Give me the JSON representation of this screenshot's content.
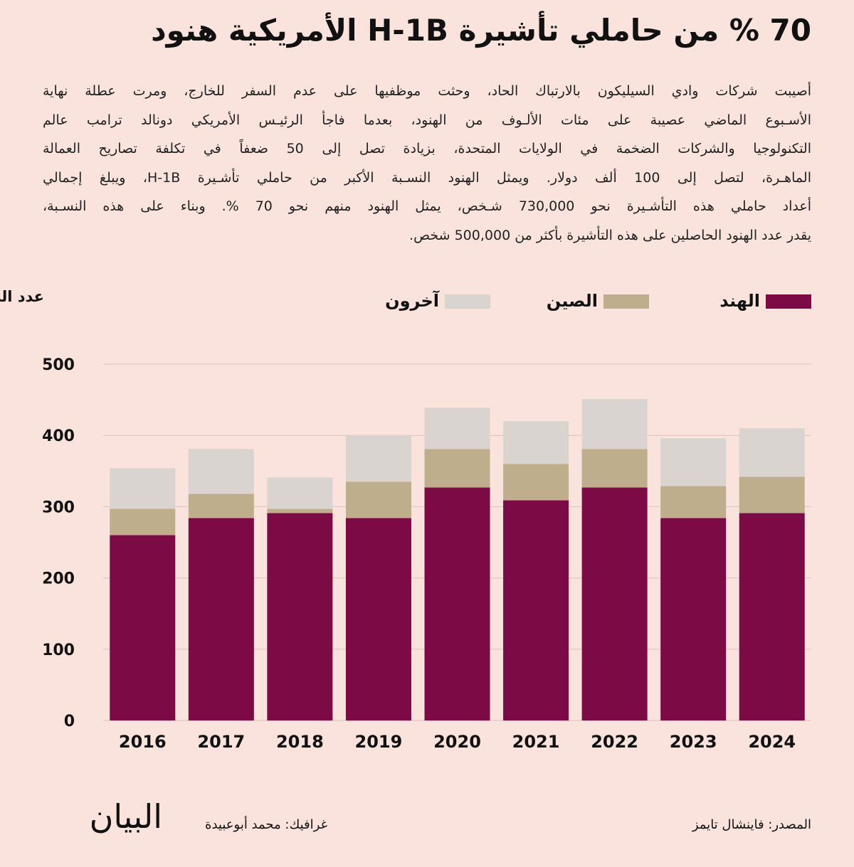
{
  "chart_data": {
    "type": "stacked_bar",
    "title": "70 % من حاملي تأشيرة H-1B الأمريكية هنود",
    "description": [
      "أصيبت شركات وادي السيليكون بالارتباك الحاد، وحثت موظفيها على عدم السفر للخارج، ومرت عطلة نهاية",
      "الأسـبوع الماضي عصيبة على مئات الألـوف من الهنود، بعدما فاجأ الرئيـس الأمريكي دونالد ترامب عالم",
      "التكنولوجيا والشركات الضخمة في الولايات المتحدة، بزيادة تصل إلى 50 ضعفاً في تكلفة تصاريح العمالة",
      "الماهـرة، لتصل إلى 100 ألف دولار.  ويمثل الهنود النسـبة الأكبر من حاملي تأشـيرة H-1B، ويبلغ إجمالي",
      "أعداد حاملي هذه التأشـيرة نحو 730,000 شـخص، يمثل الهنود منهم نحو 70 %. وبناء على هذه النسـبة،",
      "يقدر عدد الهنود الحاصلين على هذه التأشيرة بأكثر من 500,000 شخص."
    ],
    "ylabel": "عدد الطلبات المقبولة: بالآلاف",
    "source": "المصدر: فاينشال تايمز",
    "credit": "غرافيك: محمد أبوعبيدة",
    "logo": "البيان",
    "categories": [
      "2016",
      "2017",
      "2018",
      "2019",
      "2020",
      "2021",
      "2022",
      "2023",
      "2024"
    ],
    "series": [
      {
        "name": "الهند",
        "color": "#7b0a45",
        "values": [
          260,
          284,
          291,
          284,
          327,
          309,
          327,
          284,
          291
        ]
      },
      {
        "name": "الصين",
        "color": "#bfae8c",
        "values": [
          37,
          34,
          6,
          51,
          54,
          51,
          54,
          45,
          51
        ]
      },
      {
        "name": "آخرون",
        "color": "#d9d4cf",
        "values": [
          57,
          63,
          44,
          65,
          58,
          60,
          70,
          67,
          68
        ]
      }
    ],
    "ylim": [
      0,
      500
    ],
    "yticks": [
      0,
      100,
      200,
      300,
      400,
      500
    ],
    "grid": true
  }
}
